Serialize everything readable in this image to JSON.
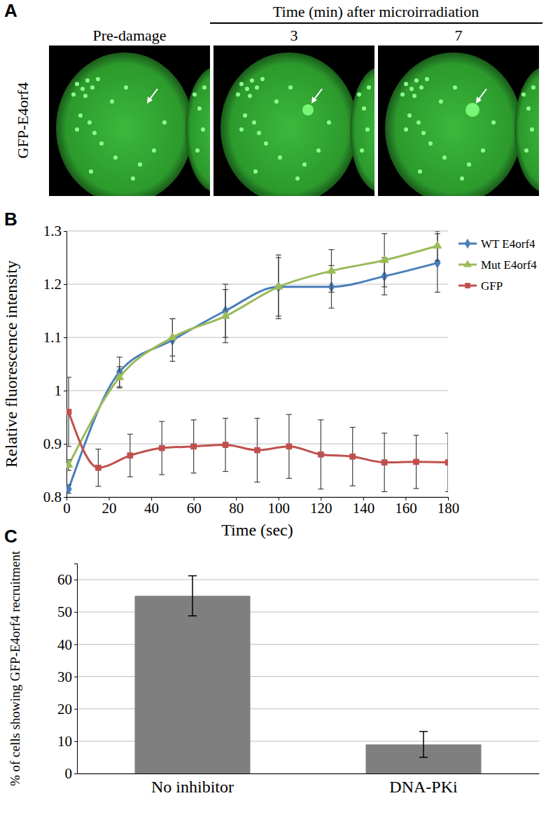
{
  "panel_a": {
    "panel": "A",
    "header": "Time (min) after microirradiation",
    "columns": [
      "Pre-damage",
      "3",
      "7"
    ],
    "row_label": "GFP-E4orf4"
  },
  "chart_data": [
    {
      "panel": "B",
      "type": "line",
      "x_label": "Time (sec)",
      "y_label": "Relative fluorescence intensity",
      "xlim": [
        0,
        180
      ],
      "xticks": [
        0,
        20,
        40,
        60,
        80,
        100,
        120,
        140,
        160,
        180
      ],
      "ylim": [
        0.8,
        1.3
      ],
      "yticks": [
        0.8,
        0.9,
        1,
        1.1,
        1.2,
        1.3
      ],
      "grid": true,
      "legend": "right",
      "series": [
        {
          "name": "WT E4orf4",
          "color": "#4a7ebb",
          "marker": "diamond",
          "x": [
            1,
            25,
            50,
            75,
            100,
            125,
            150,
            175
          ],
          "values": [
            0.815,
            1.035,
            1.095,
            1.15,
            1.195,
            1.195,
            1.215,
            1.24
          ],
          "errors": [
            0.008,
            0.028,
            0.04,
            0.05,
            0.055,
            0.04,
            0.035,
            0.055
          ]
        },
        {
          "name": "Mut E4orf4",
          "color": "#9bbb59",
          "marker": "triangle",
          "x": [
            1,
            25,
            50,
            75,
            100,
            125,
            150,
            175
          ],
          "values": [
            0.86,
            1.025,
            1.1,
            1.14,
            1.195,
            1.225,
            1.245,
            1.272
          ],
          "errors": [
            0.01,
            0.02,
            0.035,
            0.05,
            0.06,
            0.04,
            0.05,
            0.028
          ]
        },
        {
          "name": "GFP",
          "color": "#c0504d",
          "marker": "square",
          "x": [
            1,
            15,
            30,
            45,
            60,
            75,
            90,
            105,
            120,
            135,
            150,
            165,
            180
          ],
          "values": [
            0.96,
            0.855,
            0.878,
            0.892,
            0.895,
            0.898,
            0.888,
            0.895,
            0.88,
            0.876,
            0.865,
            0.866,
            0.865
          ],
          "errors": [
            0.065,
            0.035,
            0.04,
            0.05,
            0.05,
            0.05,
            0.06,
            0.06,
            0.065,
            0.055,
            0.055,
            0.05,
            0.055
          ]
        }
      ]
    },
    {
      "panel": "C",
      "type": "bar",
      "y_label": "% of cells showing GFP-E4orf4 recruitment",
      "categories": [
        "No inhibitor",
        "DNA-PKi"
      ],
      "values": [
        55,
        9
      ],
      "errors": [
        6.2,
        4
      ],
      "color": "#7f7f7f",
      "ylim": [
        0,
        65
      ],
      "yticks": [
        0,
        10,
        20,
        30,
        40,
        50,
        60
      ],
      "grid": true
    }
  ]
}
